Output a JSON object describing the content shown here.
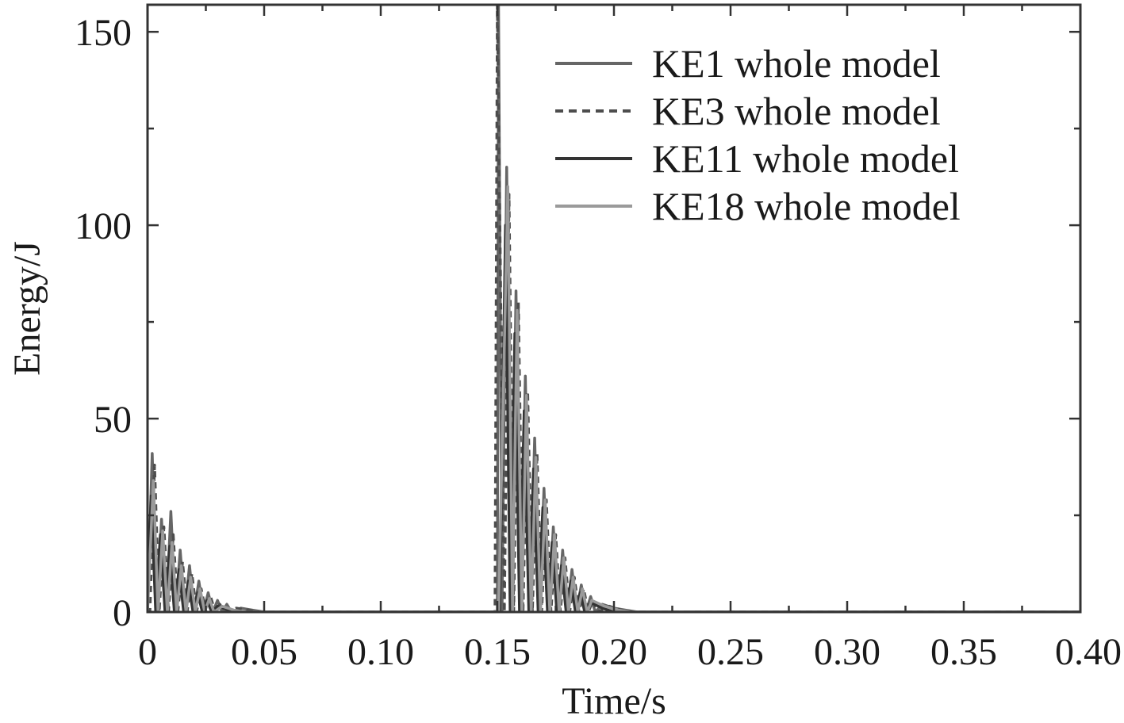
{
  "chart_data": {
    "type": "line",
    "title": "",
    "xlabel": "Time/s",
    "ylabel": "Energy/J",
    "xlim": [
      0,
      0.4
    ],
    "ylim": [
      0,
      157
    ],
    "xticks": [
      "0",
      "0.05",
      "0.10",
      "0.15",
      "0.20",
      "0.25",
      "0.30",
      "0.35",
      "0.40"
    ],
    "yticks": [
      "0",
      "50",
      "100",
      "150"
    ],
    "legend_position": "top-right",
    "grid": false,
    "series": [
      {
        "name": "KE1 whole model",
        "color": "#666666",
        "dash": "solid",
        "points": [
          [
            0,
            0
          ],
          [
            0.002,
            41
          ],
          [
            0.004,
            0
          ],
          [
            0.006,
            24
          ],
          [
            0.008,
            0
          ],
          [
            0.01,
            26
          ],
          [
            0.012,
            0
          ],
          [
            0.014,
            16
          ],
          [
            0.016,
            0
          ],
          [
            0.018,
            12
          ],
          [
            0.02,
            0
          ],
          [
            0.022,
            8
          ],
          [
            0.024,
            0
          ],
          [
            0.026,
            5
          ],
          [
            0.028,
            0
          ],
          [
            0.03,
            3
          ],
          [
            0.032,
            0
          ],
          [
            0.034,
            2
          ],
          [
            0.036,
            0
          ],
          [
            0.04,
            1
          ],
          [
            0.045,
            0.5
          ],
          [
            0.05,
            0
          ],
          [
            0.15,
            0
          ],
          [
            0.1505,
            157
          ],
          [
            0.152,
            0
          ],
          [
            0.154,
            115
          ],
          [
            0.156,
            0
          ],
          [
            0.158,
            83
          ],
          [
            0.16,
            0
          ],
          [
            0.162,
            61
          ],
          [
            0.164,
            0
          ],
          [
            0.166,
            45
          ],
          [
            0.168,
            0
          ],
          [
            0.17,
            32
          ],
          [
            0.172,
            0
          ],
          [
            0.174,
            22
          ],
          [
            0.176,
            0
          ],
          [
            0.178,
            16
          ],
          [
            0.18,
            0
          ],
          [
            0.182,
            11
          ],
          [
            0.184,
            0
          ],
          [
            0.186,
            7
          ],
          [
            0.188,
            0
          ],
          [
            0.19,
            4
          ],
          [
            0.192,
            0
          ],
          [
            0.195,
            2
          ],
          [
            0.2,
            1
          ],
          [
            0.205,
            0.5
          ],
          [
            0.21,
            0
          ],
          [
            0.4,
            0
          ]
        ]
      },
      {
        "name": "KE3 whole model",
        "color": "#4d4d4d",
        "dash": "dashed",
        "points": [
          [
            0,
            0
          ],
          [
            0.001,
            0
          ],
          [
            0.003,
            38
          ],
          [
            0.005,
            0
          ],
          [
            0.007,
            22
          ],
          [
            0.009,
            0
          ],
          [
            0.011,
            20
          ],
          [
            0.013,
            0
          ],
          [
            0.015,
            13
          ],
          [
            0.017,
            0
          ],
          [
            0.019,
            10
          ],
          [
            0.021,
            0
          ],
          [
            0.023,
            6
          ],
          [
            0.025,
            0
          ],
          [
            0.027,
            4
          ],
          [
            0.029,
            0
          ],
          [
            0.031,
            2
          ],
          [
            0.033,
            0
          ],
          [
            0.038,
            1
          ],
          [
            0.043,
            0.5
          ],
          [
            0.048,
            0
          ],
          [
            0.149,
            0
          ],
          [
            0.15,
            157
          ],
          [
            0.153,
            0
          ],
          [
            0.155,
            108
          ],
          [
            0.157,
            0
          ],
          [
            0.159,
            80
          ],
          [
            0.161,
            0
          ],
          [
            0.163,
            57
          ],
          [
            0.165,
            0
          ],
          [
            0.167,
            41
          ],
          [
            0.169,
            0
          ],
          [
            0.171,
            29
          ],
          [
            0.173,
            0
          ],
          [
            0.175,
            20
          ],
          [
            0.177,
            0
          ],
          [
            0.179,
            14
          ],
          [
            0.181,
            0
          ],
          [
            0.183,
            9
          ],
          [
            0.185,
            0
          ],
          [
            0.187,
            6
          ],
          [
            0.189,
            0
          ],
          [
            0.191,
            3
          ],
          [
            0.193,
            0
          ],
          [
            0.198,
            1.5
          ],
          [
            0.203,
            0.5
          ],
          [
            0.208,
            0
          ],
          [
            0.4,
            0
          ]
        ]
      },
      {
        "name": "KE11 whole model",
        "color": "#333333",
        "dash": "solid",
        "points": [
          [
            0,
            0
          ],
          [
            0.0015,
            30
          ],
          [
            0.0035,
            0
          ],
          [
            0.0055,
            20
          ],
          [
            0.0075,
            0
          ],
          [
            0.0095,
            17
          ],
          [
            0.0115,
            0
          ],
          [
            0.0135,
            11
          ],
          [
            0.0155,
            0
          ],
          [
            0.0175,
            8
          ],
          [
            0.0195,
            0
          ],
          [
            0.0215,
            5
          ],
          [
            0.0235,
            0
          ],
          [
            0.0255,
            3
          ],
          [
            0.0275,
            0
          ],
          [
            0.03,
            1.5
          ],
          [
            0.035,
            0.5
          ],
          [
            0.04,
            0
          ],
          [
            0.151,
            0
          ],
          [
            0.1535,
            100
          ],
          [
            0.1555,
            0
          ],
          [
            0.1575,
            72
          ],
          [
            0.1595,
            0
          ],
          [
            0.1615,
            52
          ],
          [
            0.1635,
            0
          ],
          [
            0.1655,
            37
          ],
          [
            0.1675,
            0
          ],
          [
            0.1695,
            27
          ],
          [
            0.1715,
            0
          ],
          [
            0.1735,
            18
          ],
          [
            0.1755,
            0
          ],
          [
            0.1775,
            12
          ],
          [
            0.1795,
            0
          ],
          [
            0.1815,
            8
          ],
          [
            0.1835,
            0
          ],
          [
            0.1855,
            5
          ],
          [
            0.1875,
            0
          ],
          [
            0.19,
            2.5
          ],
          [
            0.195,
            1
          ],
          [
            0.2,
            0
          ],
          [
            0.4,
            0
          ]
        ]
      },
      {
        "name": "KE18 whole model",
        "color": "#9a9a9a",
        "dash": "solid",
        "points": [
          [
            0,
            0
          ],
          [
            0.0025,
            34
          ],
          [
            0.0045,
            0
          ],
          [
            0.0065,
            21
          ],
          [
            0.0085,
            0
          ],
          [
            0.0105,
            18
          ],
          [
            0.0125,
            0
          ],
          [
            0.0145,
            12
          ],
          [
            0.0165,
            0
          ],
          [
            0.0185,
            9
          ],
          [
            0.0205,
            0
          ],
          [
            0.0225,
            6
          ],
          [
            0.0245,
            0
          ],
          [
            0.0265,
            3.5
          ],
          [
            0.0285,
            0
          ],
          [
            0.032,
            1.5
          ],
          [
            0.037,
            0.5
          ],
          [
            0.042,
            0
          ],
          [
            0.1505,
            0
          ],
          [
            0.1545,
            110
          ],
          [
            0.1565,
            0
          ],
          [
            0.1585,
            78
          ],
          [
            0.1605,
            0
          ],
          [
            0.1625,
            56
          ],
          [
            0.1645,
            0
          ],
          [
            0.1665,
            40
          ],
          [
            0.1685,
            0
          ],
          [
            0.1705,
            29
          ],
          [
            0.1725,
            0
          ],
          [
            0.1745,
            20
          ],
          [
            0.1765,
            0
          ],
          [
            0.1785,
            14
          ],
          [
            0.1805,
            0
          ],
          [
            0.1825,
            9
          ],
          [
            0.1845,
            0
          ],
          [
            0.1865,
            6
          ],
          [
            0.1885,
            0
          ],
          [
            0.1905,
            3
          ],
          [
            0.196,
            1.5
          ],
          [
            0.202,
            0.5
          ],
          [
            0.207,
            0
          ],
          [
            0.4,
            0
          ]
        ]
      }
    ]
  }
}
